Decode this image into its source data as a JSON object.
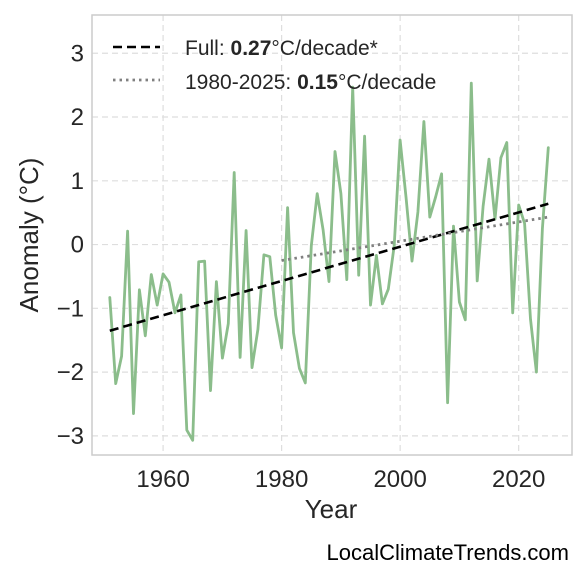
{
  "chart_data": {
    "type": "line",
    "xlabel": "Year",
    "ylabel": "Anomaly (°C)",
    "xlim": [
      1948,
      2029
    ],
    "ylim": [
      -3.3,
      3.6
    ],
    "x_ticks": [
      1960,
      1980,
      2000,
      2020
    ],
    "y_ticks": [
      -3,
      -2,
      -1,
      0,
      1,
      2,
      3
    ],
    "grid": true,
    "legend_position": "top-left",
    "series": [
      {
        "kind": "observed",
        "color": "#8bbd8b",
        "style": "solid",
        "x": [
          1951,
          1952,
          1953,
          1954,
          1955,
          1956,
          1957,
          1958,
          1959,
          1960,
          1961,
          1962,
          1963,
          1964,
          1965,
          1966,
          1967,
          1968,
          1969,
          1970,
          1971,
          1972,
          1973,
          1974,
          1975,
          1976,
          1977,
          1978,
          1979,
          1980,
          1981,
          1982,
          1983,
          1984,
          1985,
          1986,
          1987,
          1988,
          1989,
          1990,
          1991,
          1992,
          1993,
          1994,
          1995,
          1996,
          1997,
          1998,
          1999,
          2000,
          2001,
          2002,
          2003,
          2004,
          2005,
          2006,
          2007,
          2008,
          2009,
          2010,
          2011,
          2012,
          2013,
          2014,
          2015,
          2016,
          2017,
          2018,
          2019,
          2020,
          2021,
          2022,
          2023,
          2024,
          2025
        ],
        "y": [
          -0.83,
          -2.18,
          -1.75,
          0.21,
          -2.65,
          -0.71,
          -1.43,
          -0.47,
          -0.95,
          -0.46,
          -0.59,
          -1.07,
          -0.79,
          -2.91,
          -3.07,
          -0.27,
          -0.26,
          -2.29,
          -0.58,
          -1.78,
          -1.24,
          1.13,
          -1.77,
          0.22,
          -1.93,
          -1.33,
          -0.16,
          -0.19,
          -1.11,
          -1.62,
          0.58,
          -1.38,
          -1.94,
          -2.17,
          -0.02,
          0.8,
          0.23,
          -0.58,
          1.46,
          0.8,
          -0.55,
          2.47,
          -0.48,
          1.7,
          -0.95,
          -0.17,
          -0.93,
          -0.7,
          -0.02,
          1.64,
          0.73,
          -0.26,
          0.51,
          1.93,
          0.43,
          0.75,
          1.11,
          -2.48,
          0.29,
          -0.9,
          -1.18,
          2.53,
          -0.57,
          0.6,
          1.34,
          0.4,
          1.36,
          1.6,
          -1.07,
          0.62,
          0.33,
          -1.17,
          -2.0,
          0.25,
          1.52
        ]
      },
      {
        "kind": "trend-full",
        "name": "Full",
        "value": "0.27",
        "unit": "°C/decade*",
        "color": "#000000",
        "style": "dashed",
        "x": [
          1951,
          2025
        ],
        "y": [
          -1.35,
          0.64
        ]
      },
      {
        "kind": "trend-recent",
        "name": "1980-2025",
        "value": "0.15",
        "unit": "°C/decade",
        "color": "#808080",
        "style": "dotted",
        "x": [
          1980,
          2025
        ],
        "y": [
          -0.25,
          0.43
        ]
      }
    ]
  },
  "legend": {
    "full_prefix": "Full: ",
    "full_value": "0.27",
    "full_unit": "°C/decade*",
    "recent_prefix": "1980-2025: ",
    "recent_value": "0.15",
    "recent_unit": "°C/decade"
  },
  "credit": "LocalClimateTrends.com"
}
